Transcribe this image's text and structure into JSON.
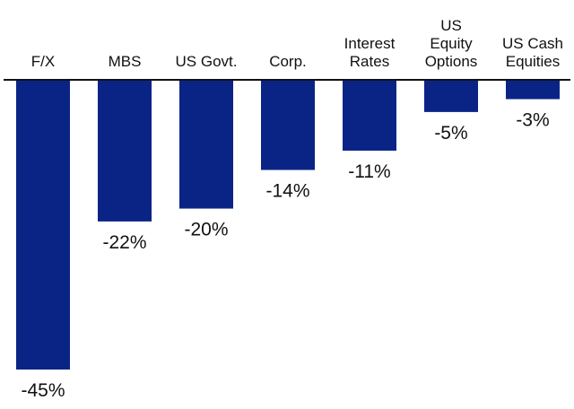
{
  "chart_data": {
    "type": "bar",
    "orientation": "vertical",
    "categories": [
      [
        "F/X"
      ],
      [
        "MBS"
      ],
      [
        "US Govt."
      ],
      [
        "Corp."
      ],
      [
        "Interest",
        "Rates"
      ],
      [
        "US",
        "Equity",
        "Options"
      ],
      [
        "US Cash",
        "Equities"
      ]
    ],
    "values": [
      -45,
      -22,
      -20,
      -14,
      -11,
      -5,
      -3
    ],
    "value_labels": [
      "-45%",
      "-22%",
      "-20%",
      "-14%",
      "-11%",
      "-5%",
      "-3%"
    ],
    "unit": "%",
    "ylim": [
      -45,
      0
    ],
    "grid": false,
    "axis_line": "zero baseline at top",
    "category_labels_position": "above baseline",
    "value_labels_position": "below bar",
    "colors": {
      "bar": "#0a2486",
      "baseline": "#111111",
      "text": "#111111",
      "background": "#ffffff"
    }
  }
}
